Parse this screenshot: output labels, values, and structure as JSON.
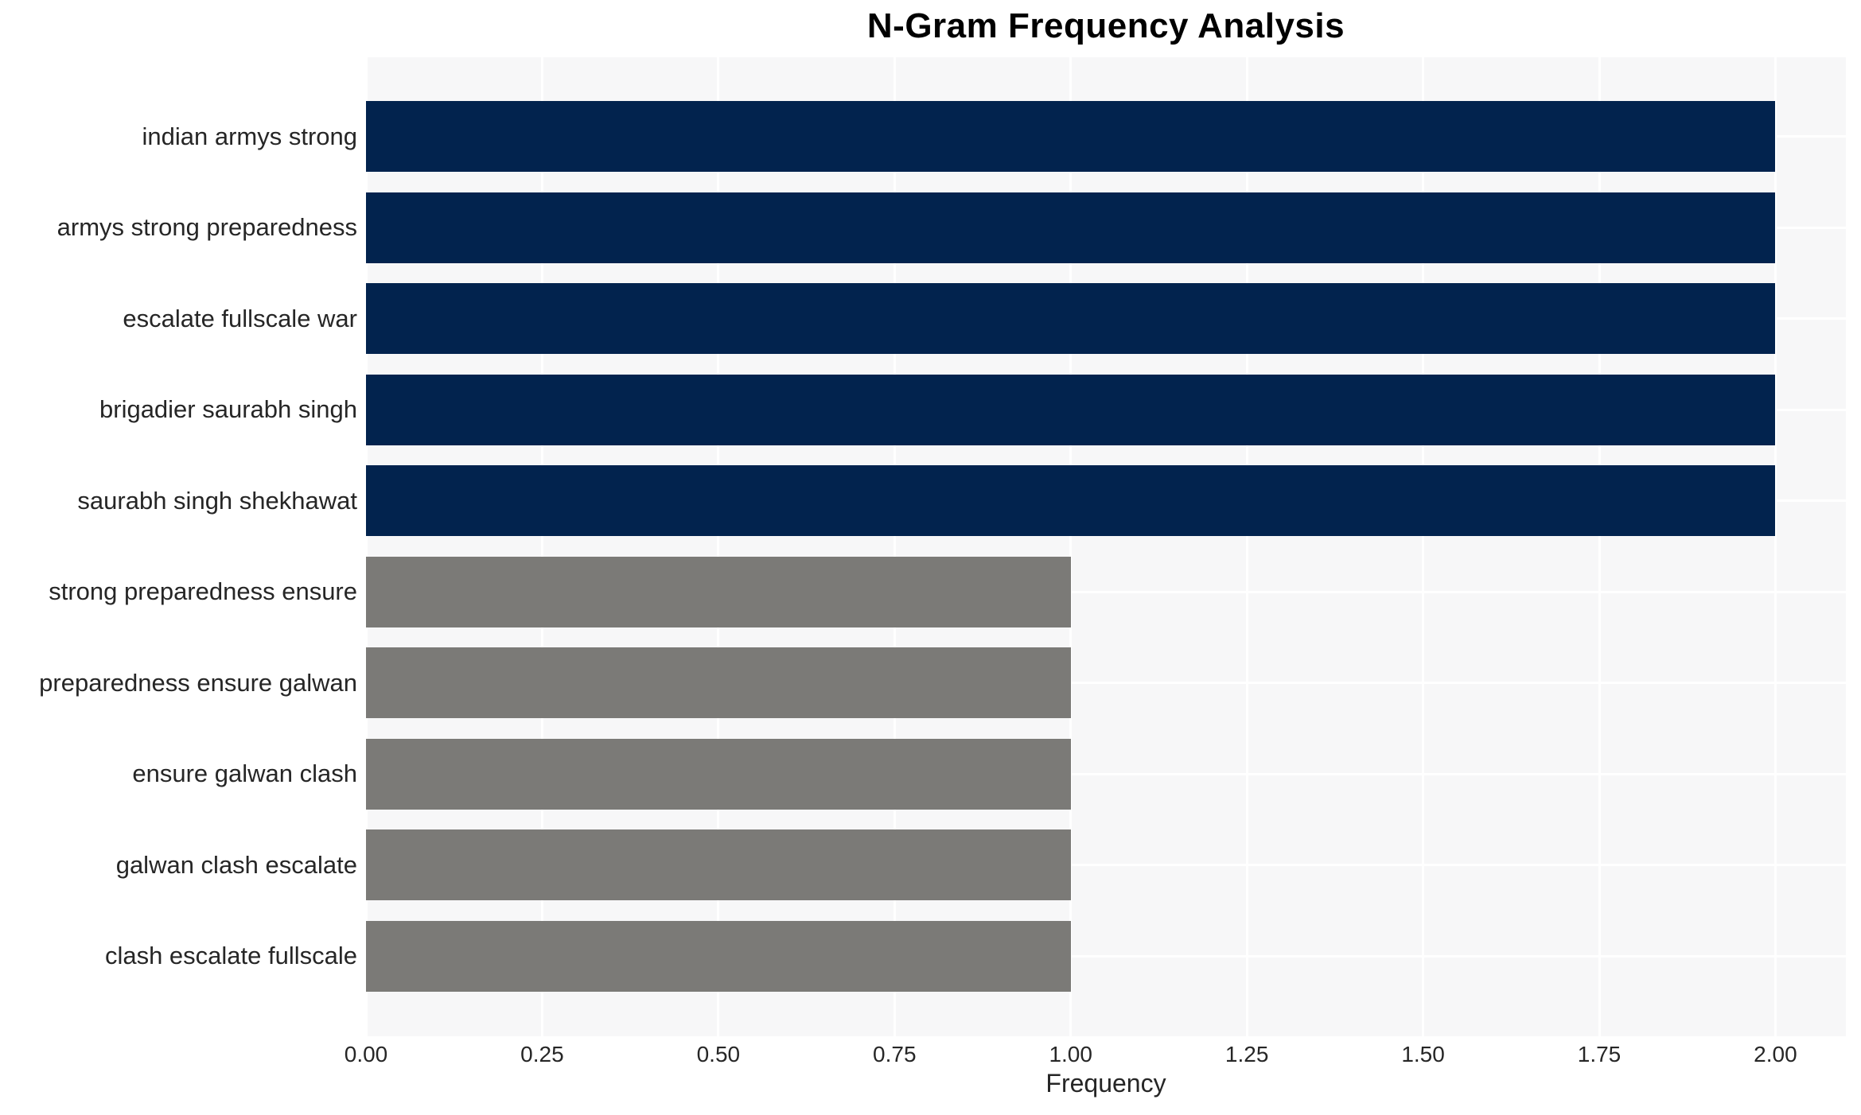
{
  "chart_data": {
    "type": "bar",
    "orientation": "horizontal",
    "title": "N-Gram Frequency Analysis",
    "xlabel": "Frequency",
    "ylabel": "",
    "categories": [
      "indian armys strong",
      "armys strong preparedness",
      "escalate fullscale war",
      "brigadier saurabh singh",
      "saurabh singh shekhawat",
      "strong preparedness ensure",
      "preparedness ensure galwan",
      "ensure galwan clash",
      "galwan clash escalate",
      "clash escalate fullscale"
    ],
    "values": [
      2,
      2,
      2,
      2,
      2,
      1,
      1,
      1,
      1,
      1
    ],
    "bar_colors": [
      "#02234e",
      "#02234e",
      "#02234e",
      "#02234e",
      "#02234e",
      "#7b7a77",
      "#7b7a77",
      "#7b7a77",
      "#7b7a77",
      "#7b7a77"
    ],
    "xlim": [
      0,
      2.1
    ],
    "xticks": [
      "0.00",
      "0.25",
      "0.50",
      "0.75",
      "1.00",
      "1.25",
      "1.50",
      "1.75",
      "2.00"
    ],
    "xtick_values": [
      0,
      0.25,
      0.5,
      0.75,
      1.0,
      1.25,
      1.5,
      1.75,
      2.0
    ],
    "grid": true,
    "legend": null
  },
  "colors": {
    "figure_background": "#ffffff",
    "plot_background": "#f7f7f8",
    "gridline": "#ffffff",
    "bar_high": "#02234e",
    "bar_low": "#7b7a77",
    "tick_text": "#262626",
    "title_text": "#000000"
  }
}
